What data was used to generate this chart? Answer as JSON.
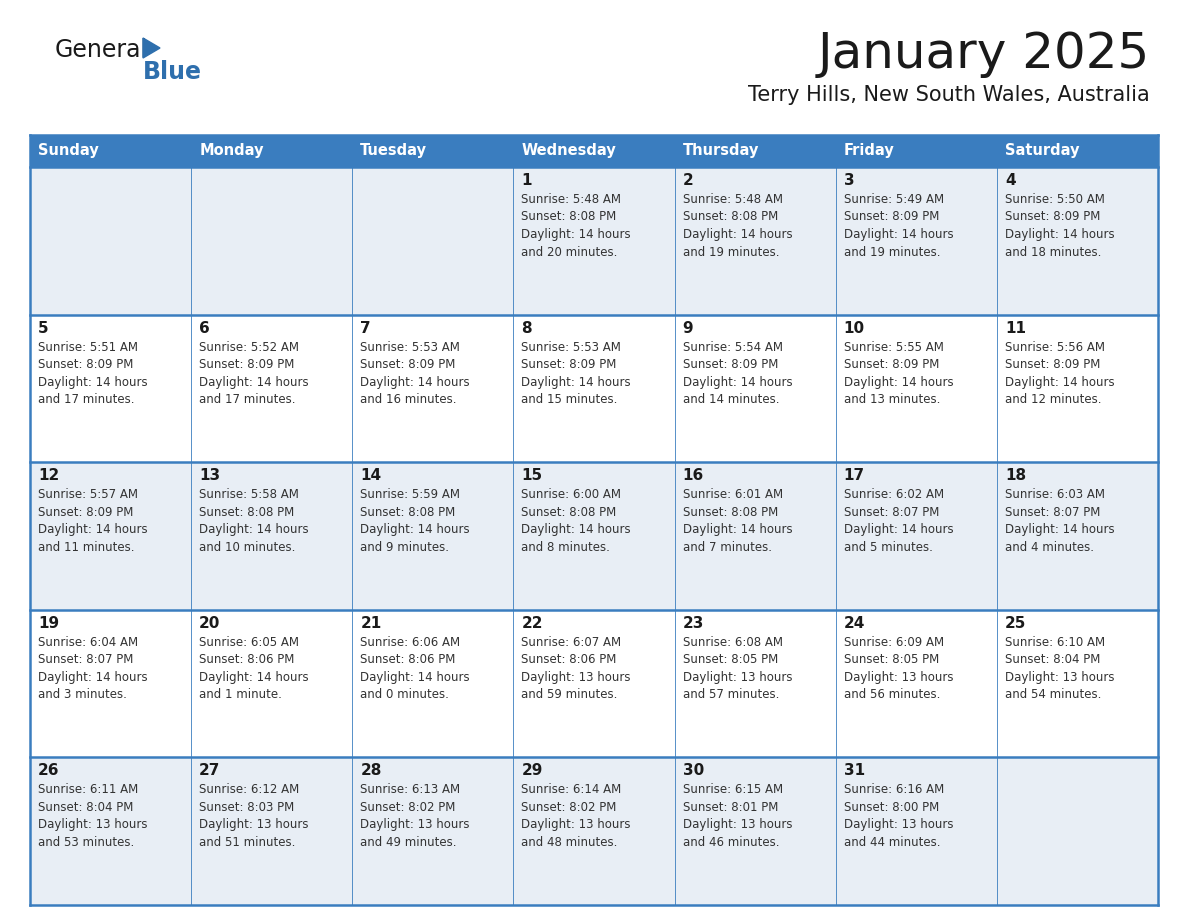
{
  "title": "January 2025",
  "subtitle": "Terry Hills, New South Wales, Australia",
  "header_bg": "#3a7dbf",
  "header_text_color": "#ffffff",
  "row_bg_odd": "#e8eef5",
  "row_bg_even": "#ffffff",
  "border_color": "#3a7dbf",
  "text_color": "#333333",
  "days_of_week": [
    "Sunday",
    "Monday",
    "Tuesday",
    "Wednesday",
    "Thursday",
    "Friday",
    "Saturday"
  ],
  "weeks": [
    [
      {
        "day": "",
        "sunrise": "",
        "sunset": "",
        "daylight_h": "",
        "daylight_m": ""
      },
      {
        "day": "",
        "sunrise": "",
        "sunset": "",
        "daylight_h": "",
        "daylight_m": ""
      },
      {
        "day": "",
        "sunrise": "",
        "sunset": "",
        "daylight_h": "",
        "daylight_m": ""
      },
      {
        "day": "1",
        "sunrise": "5:48 AM",
        "sunset": "8:08 PM",
        "daylight_h": "14 hours",
        "daylight_m": "and 20 minutes."
      },
      {
        "day": "2",
        "sunrise": "5:48 AM",
        "sunset": "8:08 PM",
        "daylight_h": "14 hours",
        "daylight_m": "and 19 minutes."
      },
      {
        "day": "3",
        "sunrise": "5:49 AM",
        "sunset": "8:09 PM",
        "daylight_h": "14 hours",
        "daylight_m": "and 19 minutes."
      },
      {
        "day": "4",
        "sunrise": "5:50 AM",
        "sunset": "8:09 PM",
        "daylight_h": "14 hours",
        "daylight_m": "and 18 minutes."
      }
    ],
    [
      {
        "day": "5",
        "sunrise": "5:51 AM",
        "sunset": "8:09 PM",
        "daylight_h": "14 hours",
        "daylight_m": "and 17 minutes."
      },
      {
        "day": "6",
        "sunrise": "5:52 AM",
        "sunset": "8:09 PM",
        "daylight_h": "14 hours",
        "daylight_m": "and 17 minutes."
      },
      {
        "day": "7",
        "sunrise": "5:53 AM",
        "sunset": "8:09 PM",
        "daylight_h": "14 hours",
        "daylight_m": "and 16 minutes."
      },
      {
        "day": "8",
        "sunrise": "5:53 AM",
        "sunset": "8:09 PM",
        "daylight_h": "14 hours",
        "daylight_m": "and 15 minutes."
      },
      {
        "day": "9",
        "sunrise": "5:54 AM",
        "sunset": "8:09 PM",
        "daylight_h": "14 hours",
        "daylight_m": "and 14 minutes."
      },
      {
        "day": "10",
        "sunrise": "5:55 AM",
        "sunset": "8:09 PM",
        "daylight_h": "14 hours",
        "daylight_m": "and 13 minutes."
      },
      {
        "day": "11",
        "sunrise": "5:56 AM",
        "sunset": "8:09 PM",
        "daylight_h": "14 hours",
        "daylight_m": "and 12 minutes."
      }
    ],
    [
      {
        "day": "12",
        "sunrise": "5:57 AM",
        "sunset": "8:09 PM",
        "daylight_h": "14 hours",
        "daylight_m": "and 11 minutes."
      },
      {
        "day": "13",
        "sunrise": "5:58 AM",
        "sunset": "8:08 PM",
        "daylight_h": "14 hours",
        "daylight_m": "and 10 minutes."
      },
      {
        "day": "14",
        "sunrise": "5:59 AM",
        "sunset": "8:08 PM",
        "daylight_h": "14 hours",
        "daylight_m": "and 9 minutes."
      },
      {
        "day": "15",
        "sunrise": "6:00 AM",
        "sunset": "8:08 PM",
        "daylight_h": "14 hours",
        "daylight_m": "and 8 minutes."
      },
      {
        "day": "16",
        "sunrise": "6:01 AM",
        "sunset": "8:08 PM",
        "daylight_h": "14 hours",
        "daylight_m": "and 7 minutes."
      },
      {
        "day": "17",
        "sunrise": "6:02 AM",
        "sunset": "8:07 PM",
        "daylight_h": "14 hours",
        "daylight_m": "and 5 minutes."
      },
      {
        "day": "18",
        "sunrise": "6:03 AM",
        "sunset": "8:07 PM",
        "daylight_h": "14 hours",
        "daylight_m": "and 4 minutes."
      }
    ],
    [
      {
        "day": "19",
        "sunrise": "6:04 AM",
        "sunset": "8:07 PM",
        "daylight_h": "14 hours",
        "daylight_m": "and 3 minutes."
      },
      {
        "day": "20",
        "sunrise": "6:05 AM",
        "sunset": "8:06 PM",
        "daylight_h": "14 hours",
        "daylight_m": "and 1 minute."
      },
      {
        "day": "21",
        "sunrise": "6:06 AM",
        "sunset": "8:06 PM",
        "daylight_h": "14 hours",
        "daylight_m": "and 0 minutes."
      },
      {
        "day": "22",
        "sunrise": "6:07 AM",
        "sunset": "8:06 PM",
        "daylight_h": "13 hours",
        "daylight_m": "and 59 minutes."
      },
      {
        "day": "23",
        "sunrise": "6:08 AM",
        "sunset": "8:05 PM",
        "daylight_h": "13 hours",
        "daylight_m": "and 57 minutes."
      },
      {
        "day": "24",
        "sunrise": "6:09 AM",
        "sunset": "8:05 PM",
        "daylight_h": "13 hours",
        "daylight_m": "and 56 minutes."
      },
      {
        "day": "25",
        "sunrise": "6:10 AM",
        "sunset": "8:04 PM",
        "daylight_h": "13 hours",
        "daylight_m": "and 54 minutes."
      }
    ],
    [
      {
        "day": "26",
        "sunrise": "6:11 AM",
        "sunset": "8:04 PM",
        "daylight_h": "13 hours",
        "daylight_m": "and 53 minutes."
      },
      {
        "day": "27",
        "sunrise": "6:12 AM",
        "sunset": "8:03 PM",
        "daylight_h": "13 hours",
        "daylight_m": "and 51 minutes."
      },
      {
        "day": "28",
        "sunrise": "6:13 AM",
        "sunset": "8:02 PM",
        "daylight_h": "13 hours",
        "daylight_m": "and 49 minutes."
      },
      {
        "day": "29",
        "sunrise": "6:14 AM",
        "sunset": "8:02 PM",
        "daylight_h": "13 hours",
        "daylight_m": "and 48 minutes."
      },
      {
        "day": "30",
        "sunrise": "6:15 AM",
        "sunset": "8:01 PM",
        "daylight_h": "13 hours",
        "daylight_m": "and 46 minutes."
      },
      {
        "day": "31",
        "sunrise": "6:16 AM",
        "sunset": "8:00 PM",
        "daylight_h": "13 hours",
        "daylight_m": "and 44 minutes."
      },
      {
        "day": "",
        "sunrise": "",
        "sunset": "",
        "daylight_h": "",
        "daylight_m": ""
      }
    ]
  ]
}
